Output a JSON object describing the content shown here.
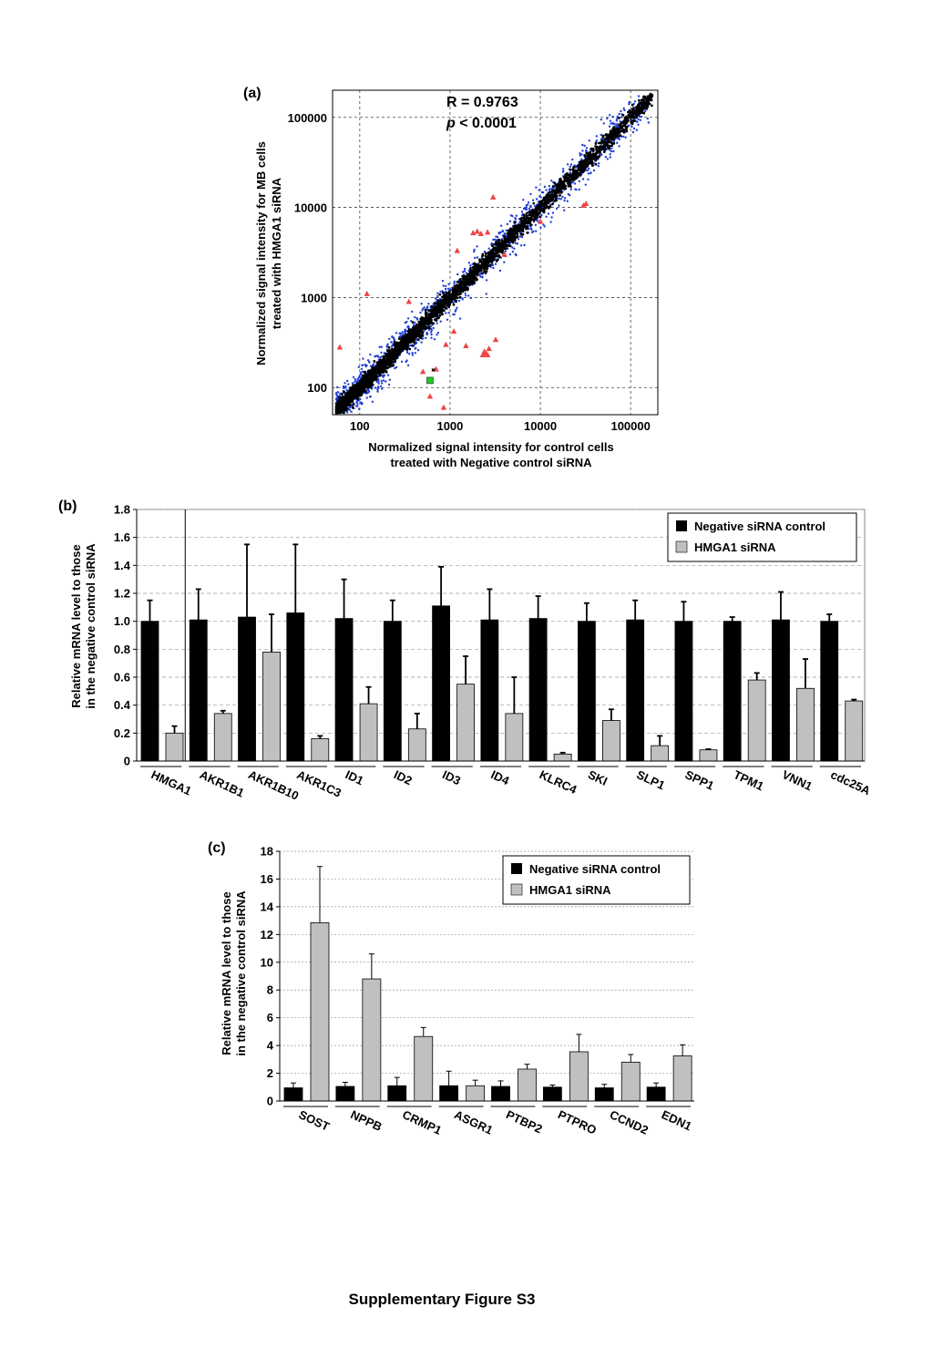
{
  "figure_caption": "Supplementary Figure S3",
  "chart_data": [
    {
      "panel": "(a)",
      "type": "scatter",
      "xlabel_lines": [
        "Normalized signal intensity for control cells",
        "treated with Negative control siRNA"
      ],
      "ylabel_lines": [
        "Normalized signal intensity for MB cells",
        "treated with HMGA1 siRNA"
      ],
      "log_scale": true,
      "xlim": [
        50,
        200000
      ],
      "ylim": [
        50,
        200000
      ],
      "x_ticks": [
        "100",
        "1000",
        "10000",
        "100000"
      ],
      "y_ticks": [
        "100",
        "1000",
        "10000",
        "100000"
      ],
      "grid": true,
      "stats_r": "R = 0.9763",
      "stats_p_symbol": "p",
      "stats_p_rest": " < 0.0001",
      "colors": {
        "bulk": "#000000",
        "moderate": "#1f3fd6",
        "outlier": "#ee4444",
        "target": "#22cc22"
      },
      "outliers": [
        {
          "x": 60,
          "y": 280
        },
        {
          "x": 120,
          "y": 1100
        },
        {
          "x": 350,
          "y": 900
        },
        {
          "x": 500,
          "y": 150
        },
        {
          "x": 600,
          "y": 80
        },
        {
          "x": 700,
          "y": 160
        },
        {
          "x": 850,
          "y": 60
        },
        {
          "x": 900,
          "y": 300
        },
        {
          "x": 1100,
          "y": 420
        },
        {
          "x": 1200,
          "y": 3300
        },
        {
          "x": 1500,
          "y": 290
        },
        {
          "x": 1800,
          "y": 5200
        },
        {
          "x": 2000,
          "y": 5400
        },
        {
          "x": 2200,
          "y": 5100
        },
        {
          "x": 2300,
          "y": 230
        },
        {
          "x": 2400,
          "y": 250
        },
        {
          "x": 2500,
          "y": 240
        },
        {
          "x": 2600,
          "y": 230
        },
        {
          "x": 2700,
          "y": 270
        },
        {
          "x": 2600,
          "y": 5300
        },
        {
          "x": 3000,
          "y": 13000
        },
        {
          "x": 3200,
          "y": 340
        },
        {
          "x": 4000,
          "y": 3000
        },
        {
          "x": 10000,
          "y": 7000
        },
        {
          "x": 30000,
          "y": 10500
        },
        {
          "x": 32000,
          "y": 11000
        }
      ],
      "target_point": {
        "x": 600,
        "y": 120
      }
    },
    {
      "panel": "(b)",
      "type": "bar",
      "ylabel_lines": [
        "Relative mRNA level to those",
        "in the negative control siRNA"
      ],
      "ylim": [
        0,
        1.8
      ],
      "y_ticks": [
        "0",
        "0.2",
        "0.4",
        "0.6",
        "0.8",
        "1.0",
        "1.2",
        "1.4",
        "1.6",
        "1.8"
      ],
      "categories": [
        "HMGA1",
        "AKR1B1",
        "AKR1B10",
        "AKR1C3",
        "ID1",
        "ID2",
        "ID3",
        "ID4",
        "KLRC4",
        "SKI",
        "SLP1",
        "SPP1",
        "TPM1",
        "VNN1",
        "cdc25A"
      ],
      "series": [
        {
          "name": "Negative siRNA control",
          "color": "#000000",
          "values": [
            1.0,
            1.01,
            1.03,
            1.06,
            1.02,
            1.0,
            1.11,
            1.01,
            1.02,
            1.0,
            1.01,
            1.0,
            1.0,
            1.01,
            1.0
          ],
          "errors": [
            0.15,
            0.22,
            0.52,
            0.49,
            0.28,
            0.15,
            0.28,
            0.22,
            0.16,
            0.13,
            0.14,
            0.14,
            0.03,
            0.2,
            0.05
          ]
        },
        {
          "name": "HMGA1 siRNA",
          "color": "#c0c0c0",
          "values": [
            0.2,
            0.34,
            0.78,
            0.16,
            0.41,
            0.23,
            0.55,
            0.34,
            0.05,
            0.29,
            0.11,
            0.08,
            0.58,
            0.52,
            0.43
          ],
          "errors": [
            0.05,
            0.02,
            0.27,
            0.02,
            0.12,
            0.11,
            0.2,
            0.26,
            0.01,
            0.08,
            0.07,
            0.005,
            0.05,
            0.21,
            0.01
          ]
        }
      ],
      "grid": true,
      "legend_position": "top-right"
    },
    {
      "panel": "(c)",
      "type": "bar",
      "ylabel_lines": [
        "Relative mRNA level to those",
        "in the negative control siRNA"
      ],
      "ylim": [
        0,
        18
      ],
      "y_ticks": [
        "0",
        "2",
        "4",
        "6",
        "8",
        "10",
        "12",
        "14",
        "16",
        "18"
      ],
      "categories": [
        "SOST",
        "NPPB",
        "CRMP1",
        "ASGR1",
        "PTBP2",
        "PTPRO",
        "CCND2",
        "EDN1"
      ],
      "series": [
        {
          "name": "Negative siRNA control",
          "color": "#000000",
          "values": [
            0.95,
            1.05,
            1.1,
            1.1,
            1.05,
            1.0,
            0.95,
            1.0
          ],
          "errors": [
            0.35,
            0.3,
            0.6,
            1.05,
            0.4,
            0.15,
            0.25,
            0.3
          ]
        },
        {
          "name": "HMGA1 siRNA",
          "color": "#c0c0c0",
          "values": [
            12.85,
            8.8,
            4.65,
            1.1,
            2.3,
            3.55,
            2.8,
            3.25
          ],
          "errors": [
            4.05,
            1.8,
            0.65,
            0.4,
            0.35,
            1.25,
            0.55,
            0.8
          ]
        }
      ],
      "grid": true,
      "legend_position": "top-right"
    }
  ]
}
